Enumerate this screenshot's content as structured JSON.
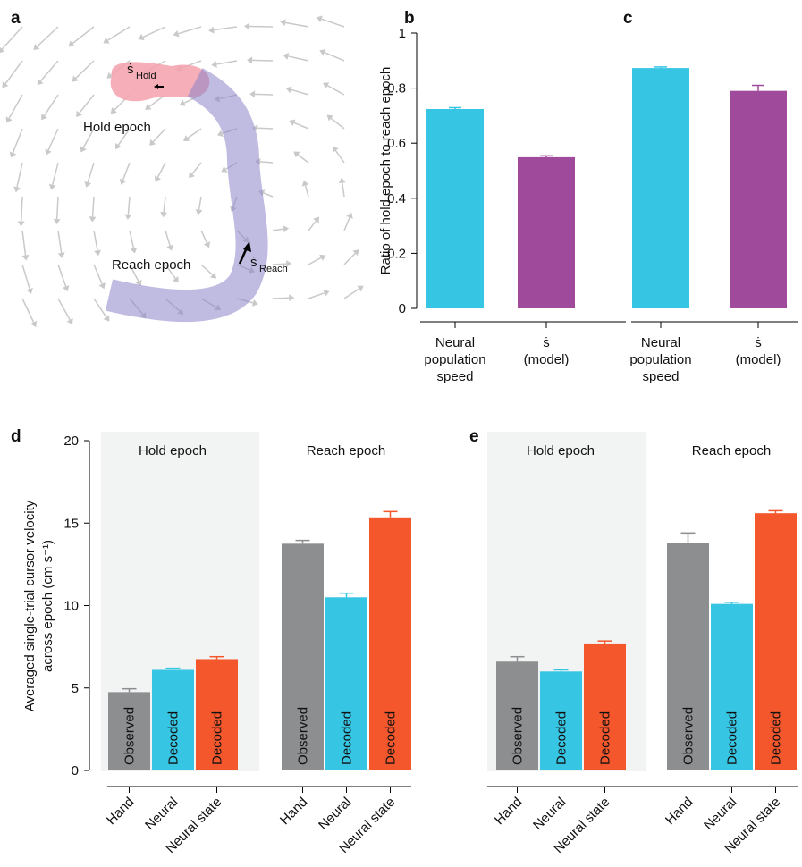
{
  "diagram": {
    "panel": "a",
    "rate_symbol": "ṡ",
    "hold_subscript": "Hold",
    "reach_subscript": "Reach",
    "hold_label": "Hold epoch",
    "reach_label": "Reach epoch"
  },
  "chart_data": [
    {
      "type": "bar",
      "panel": "b",
      "ylabel": "Ratio of hold epoch to reach epoch",
      "categories": [
        "Neural population speed",
        "ṡ (model)"
      ],
      "values": [
        0.724,
        0.549
      ],
      "errors": [
        0.005,
        0.005
      ],
      "colors": [
        "#36c5e3",
        "#a04a9c"
      ],
      "ylim": [
        0,
        1
      ],
      "yticks": [
        0,
        0.2,
        0.4,
        0.6,
        0.8,
        1
      ]
    },
    {
      "type": "bar",
      "panel": "c",
      "categories": [
        "Neural population speed",
        "ṡ (model)"
      ],
      "values": [
        0.873,
        0.79
      ],
      "errors": [
        0.004,
        0.02
      ],
      "colors": [
        "#36c5e3",
        "#a04a9c"
      ]
    },
    {
      "type": "grouped_bar",
      "panel": "d",
      "ylabel": [
        "Averaged single-trial cursor velocity",
        "across epoch (cm s⁻¹)"
      ],
      "categories": [
        "Hand",
        "Neural",
        "Neural state"
      ],
      "bar_labels": [
        "Observed",
        "Decoded",
        "Decoded"
      ],
      "colors": [
        "#8d8e90",
        "#36c5e3",
        "#f5572c"
      ],
      "series": [
        {
          "name": "Hold epoch",
          "values": [
            4.75,
            6.1,
            6.75
          ],
          "errors": [
            0.2,
            0.1,
            0.15
          ]
        },
        {
          "name": "Reach epoch",
          "values": [
            13.75,
            10.5,
            15.35
          ],
          "errors": [
            0.2,
            0.25,
            0.35
          ]
        }
      ],
      "ylim": [
        0,
        20
      ],
      "yticks": [
        0,
        5,
        10,
        15,
        20
      ]
    },
    {
      "type": "grouped_bar",
      "panel": "e",
      "categories": [
        "Hand",
        "Neural",
        "Neural state"
      ],
      "bar_labels": [
        "Observed",
        "Decoded",
        "Decoded"
      ],
      "colors": [
        "#8d8e90",
        "#36c5e3",
        "#f5572c"
      ],
      "series": [
        {
          "name": "Hold epoch",
          "values": [
            6.6,
            6.0,
            7.7
          ],
          "errors": [
            0.3,
            0.1,
            0.15
          ]
        },
        {
          "name": "Reach epoch",
          "values": [
            13.8,
            10.1,
            15.6
          ],
          "errors": [
            0.6,
            0.1,
            0.15
          ]
        }
      ]
    }
  ]
}
